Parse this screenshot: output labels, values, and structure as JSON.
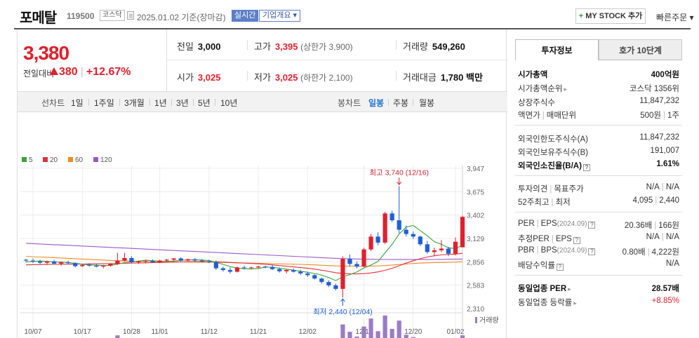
{
  "header": {
    "stock_name": "포메탈",
    "stock_code": "119500",
    "market": "코스닥",
    "date_text": "2025.01.02 기준(장마감)",
    "realtime_label": "실시간",
    "overview_label": "기업개요 ▾",
    "mystock_label": "MY STOCK 추가",
    "quick_order_label": "빠른주문 ▾"
  },
  "price": {
    "current": "3,380",
    "change_label": "전일대비",
    "change_amount": "380",
    "change_percent": "+12.67%"
  },
  "summary": {
    "prev_close": {
      "label": "전일",
      "value": "3,000"
    },
    "high": {
      "label": "고가",
      "value": "3,395",
      "sub": "(상한가 3,900)"
    },
    "volume": {
      "label": "거래량",
      "value": "549,260"
    },
    "open": {
      "label": "시가",
      "value": "3,025"
    },
    "low": {
      "label": "저가",
      "value": "3,025",
      "sub": "(하한가 2,100)"
    },
    "amount": {
      "label": "거래대금",
      "value": "1,780",
      "unit": "백만"
    }
  },
  "toolbar": {
    "line_chart_label": "선차트",
    "line_periods": [
      "1일",
      "1주일",
      "3개월",
      "1년",
      "3년",
      "5년",
      "10년"
    ],
    "candle_chart_label": "봉차트",
    "candle_periods": [
      "일봉",
      "주봉",
      "월봉"
    ],
    "active_candle": "일봉"
  },
  "chart_data": {
    "type": "candlestick",
    "legend": [
      {
        "name": "5",
        "color": "#3aa23a"
      },
      {
        "name": "20",
        "color": "#e0303a"
      },
      {
        "name": "60",
        "color": "#f08a22"
      },
      {
        "name": "120",
        "color": "#9b59c7"
      }
    ],
    "y_ticks": [
      "3,947",
      "3,675",
      "3,402",
      "3,129",
      "2,856",
      "2,583",
      "2,310"
    ],
    "ylim": [
      2310,
      3947
    ],
    "x_ticks": [
      "10/07",
      "10/17",
      "10/28",
      "11/01",
      "11/12",
      "11/21",
      "12/02",
      "12/11",
      "12/20",
      "01/02"
    ],
    "x_tick_index": [
      1,
      8,
      15,
      19,
      26,
      33,
      40,
      48,
      55,
      61
    ],
    "volume_label": "거래량",
    "annotations": {
      "high": "최고 3,740 (12/16)",
      "low": "최저 2,440 (12/04)"
    },
    "candles": [
      [
        2880,
        2890,
        2850,
        2870
      ],
      [
        2870,
        2895,
        2840,
        2860
      ],
      [
        2860,
        2880,
        2830,
        2845
      ],
      [
        2845,
        2870,
        2820,
        2860
      ],
      [
        2860,
        2880,
        2830,
        2835
      ],
      [
        2835,
        2860,
        2810,
        2850
      ],
      [
        2850,
        2870,
        2825,
        2840
      ],
      [
        2840,
        2850,
        2790,
        2805
      ],
      [
        2805,
        2830,
        2795,
        2820
      ],
      [
        2820,
        2840,
        2800,
        2810
      ],
      [
        2810,
        2830,
        2790,
        2800
      ],
      [
        2800,
        2820,
        2780,
        2810
      ],
      [
        2810,
        2840,
        2800,
        2830
      ],
      [
        2830,
        2960,
        2820,
        2870
      ],
      [
        2870,
        2960,
        2860,
        2900
      ],
      [
        2900,
        2920,
        2840,
        2850
      ],
      [
        2850,
        2870,
        2830,
        2860
      ],
      [
        2860,
        2880,
        2840,
        2865
      ],
      [
        2865,
        2885,
        2845,
        2850
      ],
      [
        2850,
        2880,
        2840,
        2870
      ],
      [
        2870,
        2890,
        2850,
        2880
      ],
      [
        2880,
        2900,
        2860,
        2895
      ],
      [
        2895,
        2910,
        2860,
        2870
      ],
      [
        2870,
        2895,
        2860,
        2885
      ],
      [
        2885,
        2900,
        2860,
        2870
      ],
      [
        2870,
        2890,
        2850,
        2860
      ],
      [
        2860,
        2880,
        2840,
        2850
      ],
      [
        2850,
        2870,
        2760,
        2780
      ],
      [
        2780,
        2800,
        2740,
        2760
      ],
      [
        2760,
        2790,
        2720,
        2740
      ],
      [
        2740,
        2800,
        2730,
        2790
      ],
      [
        2790,
        2810,
        2770,
        2785
      ],
      [
        2785,
        2800,
        2770,
        2790
      ],
      [
        2790,
        2810,
        2780,
        2800
      ],
      [
        2800,
        2810,
        2780,
        2795
      ],
      [
        2795,
        2820,
        2760,
        2770
      ],
      [
        2770,
        2790,
        2730,
        2745
      ],
      [
        2745,
        2770,
        2720,
        2760
      ],
      [
        2760,
        2780,
        2730,
        2740
      ],
      [
        2740,
        2760,
        2700,
        2720
      ],
      [
        2720,
        2740,
        2680,
        2700
      ],
      [
        2700,
        2710,
        2650,
        2660
      ],
      [
        2660,
        2670,
        2600,
        2620
      ],
      [
        2620,
        2640,
        2560,
        2580
      ],
      [
        2580,
        2600,
        2520,
        2540
      ],
      [
        2540,
        2920,
        2440,
        2890
      ],
      [
        2890,
        2940,
        2800,
        2830
      ],
      [
        2830,
        2860,
        2780,
        2800
      ],
      [
        2800,
        3020,
        2790,
        3000
      ],
      [
        3000,
        3180,
        2980,
        3150
      ],
      [
        3150,
        3200,
        3050,
        3080
      ],
      [
        3080,
        3440,
        3060,
        3420
      ],
      [
        3420,
        3450,
        3320,
        3340
      ],
      [
        3340,
        3740,
        3190,
        3230
      ],
      [
        3230,
        3280,
        3150,
        3180
      ],
      [
        3180,
        3210,
        3120,
        3150
      ],
      [
        3150,
        3160,
        3040,
        3060
      ],
      [
        3060,
        3100,
        2950,
        2970
      ],
      [
        2970,
        3020,
        2920,
        2990
      ],
      [
        2990,
        3110,
        2970,
        3010
      ],
      [
        3010,
        3030,
        2920,
        2950
      ],
      [
        2950,
        3140,
        2930,
        3090
      ],
      [
        3025,
        3395,
        3025,
        3380
      ]
    ],
    "volumes": [
      5,
      4,
      6,
      3,
      5,
      4,
      3,
      4,
      5,
      4,
      3,
      4,
      6,
      28,
      14,
      8,
      6,
      5,
      6,
      4,
      5,
      3,
      4,
      5,
      4,
      3,
      4,
      8,
      6,
      5,
      4,
      3,
      4,
      3,
      4,
      5,
      6,
      4,
      3,
      4,
      5,
      6,
      8,
      7,
      9,
      65,
      40,
      24,
      58,
      85,
      42,
      95,
      50,
      78,
      30,
      22,
      18,
      12,
      14,
      16,
      10,
      12,
      28
    ],
    "ma5": [
      2855,
      2860,
      2865,
      2860,
      2855,
      2852,
      2848,
      2838,
      2828,
      2820,
      2816,
      2812,
      2815,
      2828,
      2846,
      2854,
      2863,
      2874,
      2868,
      2862,
      2860,
      2865,
      2872,
      2878,
      2880,
      2876,
      2870,
      2850,
      2826,
      2800,
      2782,
      2774,
      2772,
      2777,
      2794,
      2792,
      2780,
      2770,
      2758,
      2745,
      2734,
      2719,
      2700,
      2672,
      2636,
      2681,
      2706,
      2738,
      2782,
      2818,
      2860,
      2960,
      3060,
      3180,
      3260,
      3280,
      3220,
      3160,
      3090,
      3060,
      3020,
      3010,
      3050
    ],
    "ma20": [
      2820,
      2822,
      2824,
      2825,
      2826,
      2827,
      2828,
      2829,
      2830,
      2831,
      2832,
      2833,
      2834,
      2836,
      2838,
      2840,
      2842,
      2844,
      2846,
      2848,
      2850,
      2852,
      2854,
      2856,
      2858,
      2858,
      2858,
      2856,
      2852,
      2848,
      2844,
      2840,
      2836,
      2832,
      2826,
      2820,
      2812,
      2804,
      2796,
      2788,
      2780,
      2770,
      2758,
      2744,
      2728,
      2720,
      2716,
      2714,
      2718,
      2726,
      2738,
      2756,
      2780,
      2810,
      2840,
      2868,
      2892,
      2912,
      2926,
      2936,
      2942,
      2946,
      2955
    ],
    "ma60": [
      2920,
      2916,
      2912,
      2908,
      2904,
      2900,
      2896,
      2892,
      2888,
      2884,
      2880,
      2876,
      2872,
      2868,
      2866,
      2864,
      2862,
      2860,
      2858,
      2857,
      2856,
      2855,
      2854,
      2853,
      2852,
      2851,
      2850,
      2849,
      2848,
      2846,
      2844,
      2842,
      2840,
      2838,
      2836,
      2834,
      2832,
      2830,
      2828,
      2826,
      2823,
      2820,
      2816,
      2812,
      2808,
      2806,
      2805,
      2804,
      2804,
      2806,
      2808,
      2812,
      2818,
      2824,
      2830,
      2836,
      2840,
      2844,
      2846,
      2848,
      2850,
      2852,
      2856
    ],
    "ma120": [
      3072,
      3068,
      3064,
      3060,
      3056,
      3052,
      3048,
      3044,
      3040,
      3036,
      3032,
      3028,
      3024,
      3020,
      3016,
      3012,
      3008,
      3004,
      3000,
      2996,
      2992,
      2988,
      2984,
      2980,
      2976,
      2972,
      2968,
      2964,
      2960,
      2956,
      2952,
      2948,
      2944,
      2940,
      2936,
      2932,
      2928,
      2924,
      2920,
      2916,
      2912,
      2908,
      2904,
      2900,
      2896,
      2893,
      2890,
      2888,
      2886,
      2885,
      2884,
      2883,
      2882,
      2882,
      2882,
      2882,
      2882,
      2882,
      2883,
      2884,
      2885,
      2886,
      2888
    ]
  },
  "side": {
    "tab_info": "투자정보",
    "tab_orderbook": "호가 10단계",
    "market_cap": {
      "label": "시가총액",
      "value": "400억원"
    },
    "market_cap_rank": {
      "label": "시가총액순위",
      "value": "코스닥 1356위"
    },
    "shares": {
      "label": "상장주식수",
      "value": "11,847,232"
    },
    "face_value": {
      "label": "액면가",
      "label2": "매매단위",
      "value": "500원",
      "value2": "1주"
    },
    "foreign_limit": {
      "label": "외국인한도주식수(A)",
      "value": "11,847,232"
    },
    "foreign_hold": {
      "label": "외국인보유주식수(B)",
      "value": "191,007"
    },
    "foreign_ratio": {
      "label": "외국인소진율(B/A)",
      "value": "1.61%"
    },
    "opinion": {
      "label": "투자의견",
      "label2": "목표주가",
      "value": "N/A",
      "value2": "N/A"
    },
    "week52": {
      "label": "52주최고",
      "label2": "최저",
      "value": "4,095",
      "value2": "2,440"
    },
    "per": {
      "label": "PER",
      "label2": "EPS",
      "period": "(2024.09)",
      "value": "20.36배",
      "value2": "166원"
    },
    "est_per": {
      "label": "추정PER",
      "label2": "EPS",
      "value": "N/A",
      "value2": "N/A"
    },
    "pbr": {
      "label": "PBR",
      "label2": "BPS",
      "period": "(2024.09)",
      "value": "0.80배",
      "value2": "4,222원"
    },
    "div_yield": {
      "label": "배당수익률",
      "value": "N/A"
    },
    "industry_per": {
      "label": "동일업종 PER",
      "value": "28.57배"
    },
    "industry_change": {
      "label": "동일업종 등락률",
      "value": "+8.85%"
    }
  }
}
